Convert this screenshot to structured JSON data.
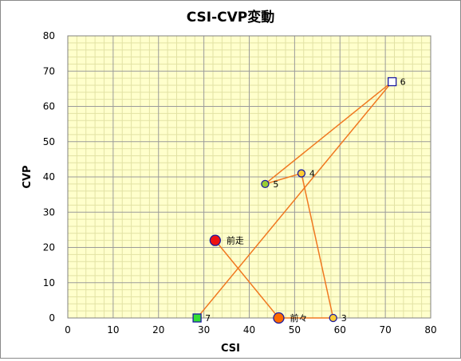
{
  "chart_data": {
    "type": "scatter",
    "title": "CSI-CVP変動",
    "xlabel": "CSI",
    "ylabel": "CVP",
    "xlim": [
      0,
      80
    ],
    "ylim": [
      0,
      80
    ],
    "xticks": [
      "0",
      "10",
      "20",
      "30",
      "40",
      "50",
      "60",
      "70",
      "80"
    ],
    "yticks": [
      "0",
      "10",
      "20",
      "30",
      "40",
      "50",
      "60",
      "70",
      "80"
    ],
    "grid": true,
    "background": "#ffffcc",
    "line_color": "#f07820",
    "points": [
      {
        "label": "7",
        "x": 28.5,
        "y": 0,
        "shape": "square",
        "color": "#33dd33"
      },
      {
        "label": "6",
        "x": 71.5,
        "y": 67,
        "shape": "square",
        "color": "#ffffff"
      },
      {
        "label": "5",
        "x": 43.5,
        "y": 38,
        "shape": "circle",
        "color": "#99cc33"
      },
      {
        "label": "4",
        "x": 51.5,
        "y": 41,
        "shape": "circle",
        "color": "#ffcc33"
      },
      {
        "label": "3",
        "x": 58.5,
        "y": 0,
        "shape": "circle",
        "color": "#ffcc33"
      },
      {
        "label": "前々",
        "x": 46.5,
        "y": 0,
        "shape": "circle",
        "color": "#ff6a00"
      },
      {
        "label": "前走",
        "x": 32.5,
        "y": 22,
        "shape": "circle",
        "color": "#ee1111"
      }
    ]
  }
}
